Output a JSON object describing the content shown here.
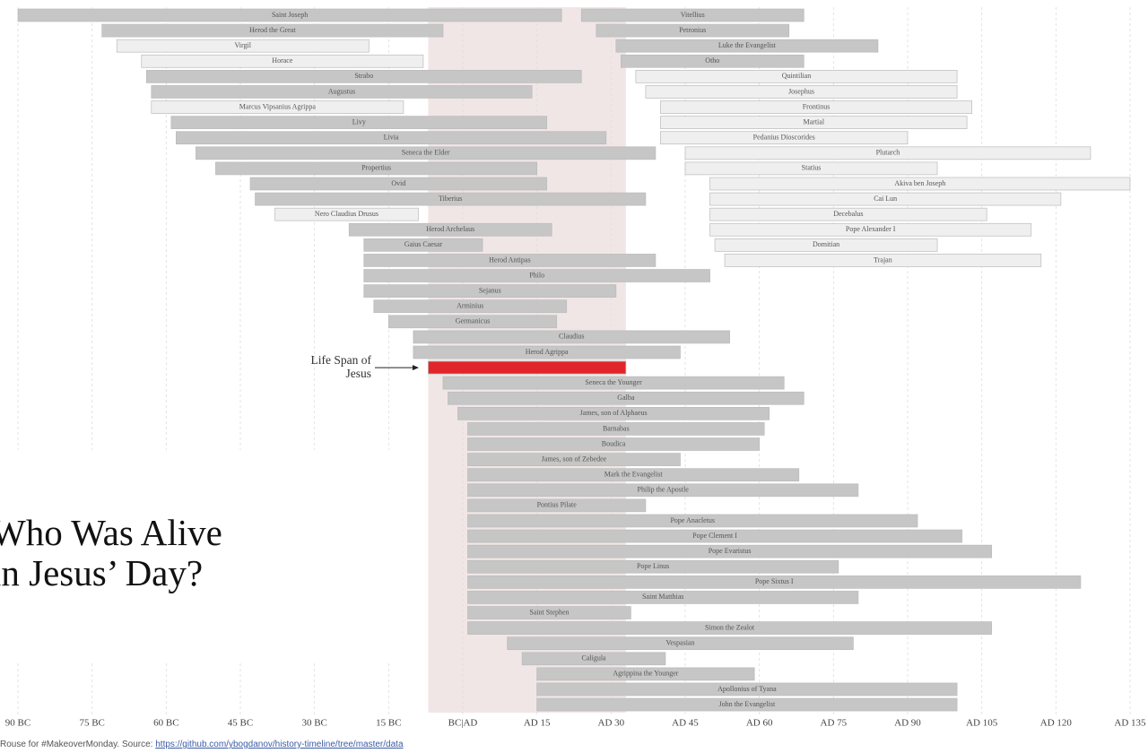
{
  "chart_data": {
    "type": "timeline",
    "title": "Who Was Alive in Jesus’ Day?",
    "annotation": "Life Span of Jesus",
    "highlight": {
      "start": -7,
      "end": 33,
      "color": "#f1e6e6"
    },
    "xlim": [
      -90,
      135
    ],
    "xticks": [
      {
        "value": -90,
        "label": "90 BC"
      },
      {
        "value": -75,
        "label": "75 BC"
      },
      {
        "value": -60,
        "label": "60 BC"
      },
      {
        "value": -45,
        "label": "45 BC"
      },
      {
        "value": -30,
        "label": "30 BC"
      },
      {
        "value": -15,
        "label": "15 BC"
      },
      {
        "value": 0,
        "label": "BC|AD"
      },
      {
        "value": 15,
        "label": "AD 15"
      },
      {
        "value": 30,
        "label": "AD 30"
      },
      {
        "value": 45,
        "label": "AD 45"
      },
      {
        "value": 60,
        "label": "AD 60"
      },
      {
        "value": 75,
        "label": "AD 75"
      },
      {
        "value": 90,
        "label": "AD 90"
      },
      {
        "value": 105,
        "label": "AD 105"
      },
      {
        "value": 120,
        "label": "AD 120"
      },
      {
        "value": 135,
        "label": "AD 135"
      }
    ],
    "grid": true,
    "rows": [
      [
        {
          "label": "Saint Joseph",
          "start": -90,
          "end": 20,
          "color": "#c6c6c6"
        },
        {
          "label": "Vitellius",
          "start": 24,
          "end": 69,
          "color": "#c6c6c6"
        }
      ],
      [
        {
          "label": "Herod the Great",
          "start": -73,
          "end": -4,
          "color": "#c6c6c6"
        },
        {
          "label": "Petronius",
          "start": 27,
          "end": 66,
          "color": "#c6c6c6"
        }
      ],
      [
        {
          "label": "Virgil",
          "start": -70,
          "end": -19,
          "color": "#efefef"
        },
        {
          "label": "Luke the Evangelist",
          "start": 31,
          "end": 84,
          "color": "#c6c6c6"
        }
      ],
      [
        {
          "label": "Horace",
          "start": -65,
          "end": -8,
          "color": "#efefef"
        },
        {
          "label": "Otho",
          "start": 32,
          "end": 69,
          "color": "#c6c6c6"
        }
      ],
      [
        {
          "label": "Strabo",
          "start": -64,
          "end": 24,
          "color": "#c6c6c6"
        },
        {
          "label": "Quintilian",
          "start": 35,
          "end": 100,
          "color": "#efefef"
        }
      ],
      [
        {
          "label": "Augustus",
          "start": -63,
          "end": 14,
          "color": "#c6c6c6"
        },
        {
          "label": "Josephus",
          "start": 37,
          "end": 100,
          "color": "#efefef"
        }
      ],
      [
        {
          "label": "Marcus Vipsanius Agrippa",
          "start": -63,
          "end": -12,
          "color": "#efefef"
        },
        {
          "label": "Frontinus",
          "start": 40,
          "end": 103,
          "color": "#efefef"
        }
      ],
      [
        {
          "label": "Livy",
          "start": -59,
          "end": 17,
          "color": "#c6c6c6"
        },
        {
          "label": "Martial",
          "start": 40,
          "end": 102,
          "color": "#efefef"
        }
      ],
      [
        {
          "label": "Livia",
          "start": -58,
          "end": 29,
          "color": "#c6c6c6"
        },
        {
          "label": "Pedanius Dioscorides",
          "start": 40,
          "end": 90,
          "color": "#efefef"
        }
      ],
      [
        {
          "label": "Seneca the Elder",
          "start": -54,
          "end": 39,
          "color": "#c6c6c6"
        },
        {
          "label": "Plutarch",
          "start": 45,
          "end": 127,
          "color": "#efefef"
        }
      ],
      [
        {
          "label": "Propertius",
          "start": -50,
          "end": 15,
          "color": "#c6c6c6"
        },
        {
          "label": "Statius",
          "start": 45,
          "end": 96,
          "color": "#efefef"
        }
      ],
      [
        {
          "label": "Ovid",
          "start": -43,
          "end": 17,
          "color": "#c6c6c6"
        },
        {
          "label": "Akiva ben Joseph",
          "start": 50,
          "end": 135,
          "color": "#efefef"
        }
      ],
      [
        {
          "label": "Tiberius",
          "start": -42,
          "end": 37,
          "color": "#c6c6c6"
        },
        {
          "label": "Cai Lun",
          "start": 50,
          "end": 121,
          "color": "#efefef"
        }
      ],
      [
        {
          "label": "Nero Claudius Drusus",
          "start": -38,
          "end": -9,
          "color": "#efefef"
        },
        {
          "label": "Decebalus",
          "start": 50,
          "end": 106,
          "color": "#efefef"
        }
      ],
      [
        {
          "label": "Herod Archelaus",
          "start": -23,
          "end": 18,
          "color": "#c6c6c6"
        },
        {
          "label": "Pope Alexander I",
          "start": 50,
          "end": 115,
          "color": "#efefef"
        }
      ],
      [
        {
          "label": "Gaius Caesar",
          "start": -20,
          "end": 4,
          "color": "#c6c6c6"
        },
        {
          "label": "Domitian",
          "start": 51,
          "end": 96,
          "color": "#efefef"
        }
      ],
      [
        {
          "label": "Herod Antipas",
          "start": -20,
          "end": 39,
          "color": "#c6c6c6"
        },
        {
          "label": "Trajan",
          "start": 53,
          "end": 117,
          "color": "#efefef"
        }
      ],
      [
        {
          "label": "Philo",
          "start": -20,
          "end": 50,
          "color": "#c6c6c6"
        }
      ],
      [
        {
          "label": "Sejanus",
          "start": -20,
          "end": 31,
          "color": "#c6c6c6"
        }
      ],
      [
        {
          "label": "Arminius",
          "start": -18,
          "end": 21,
          "color": "#c6c6c6"
        }
      ],
      [
        {
          "label": "Germanicus",
          "start": -15,
          "end": 19,
          "color": "#c6c6c6"
        }
      ],
      [
        {
          "label": "Claudius",
          "start": -10,
          "end": 54,
          "color": "#c6c6c6"
        }
      ],
      [
        {
          "label": "Herod Agrippa",
          "start": -10,
          "end": 44,
          "color": "#c6c6c6"
        }
      ],
      [
        {
          "start": -7,
          "end": 33,
          "color": "#e0262b"
        }
      ],
      [
        {
          "label": "Seneca the Younger",
          "start": -4,
          "end": 65,
          "color": "#c6c6c6"
        }
      ],
      [
        {
          "label": "Galba",
          "start": -3,
          "end": 69,
          "color": "#c6c6c6"
        }
      ],
      [
        {
          "label": "James, son of Alphaeus",
          "start": -1,
          "end": 62,
          "color": "#c6c6c6"
        }
      ],
      [
        {
          "label": "Barnabas",
          "start": 1,
          "end": 61,
          "color": "#c6c6c6"
        }
      ],
      [
        {
          "label": "Boudica",
          "start": 1,
          "end": 60,
          "color": "#c6c6c6"
        }
      ],
      [
        {
          "label": "James, son of Zebedee",
          "start": 1,
          "end": 44,
          "color": "#c6c6c6"
        }
      ],
      [
        {
          "label": "Mark the Evangelist",
          "start": 1,
          "end": 68,
          "color": "#c6c6c6"
        }
      ],
      [
        {
          "label": "Philip the Apostle",
          "start": 1,
          "end": 80,
          "color": "#c6c6c6"
        }
      ],
      [
        {
          "label": "Pontius Pilate",
          "start": 1,
          "end": 37,
          "color": "#c6c6c6"
        }
      ],
      [
        {
          "label": "Pope Anacletus",
          "start": 1,
          "end": 92,
          "color": "#c6c6c6"
        }
      ],
      [
        {
          "label": "Pope Clement I",
          "start": 1,
          "end": 101,
          "color": "#c6c6c6"
        }
      ],
      [
        {
          "label": "Pope Evaristus",
          "start": 1,
          "end": 107,
          "color": "#c6c6c6"
        }
      ],
      [
        {
          "label": "Pope Linus",
          "start": 1,
          "end": 76,
          "color": "#c6c6c6"
        }
      ],
      [
        {
          "label": "Pope Sixtus I",
          "start": 1,
          "end": 125,
          "color": "#c6c6c6"
        }
      ],
      [
        {
          "label": "Saint Matthias",
          "start": 1,
          "end": 80,
          "color": "#c6c6c6"
        }
      ],
      [
        {
          "label": "Saint Stephen",
          "start": 1,
          "end": 34,
          "color": "#c6c6c6"
        }
      ],
      [
        {
          "label": "Simon the Zealot",
          "start": 1,
          "end": 107,
          "color": "#c6c6c6"
        }
      ],
      [
        {
          "label": "Vespasian",
          "start": 9,
          "end": 79,
          "color": "#c6c6c6"
        }
      ],
      [
        {
          "label": "Caligula",
          "start": 12,
          "end": 41,
          "color": "#c6c6c6"
        }
      ],
      [
        {
          "label": "Agrippina the Younger",
          "start": 15,
          "end": 59,
          "color": "#c6c6c6"
        }
      ],
      [
        {
          "label": "Apollonius of Tyana",
          "start": 15,
          "end": 100,
          "color": "#c6c6c6"
        }
      ],
      [
        {
          "label": "John the Evangelist",
          "start": 15,
          "end": 100,
          "color": "#c6c6c6"
        }
      ]
    ]
  },
  "footer": {
    "note": "Rouse for #MakeoverMonday. Source:",
    "url": "https://github.com/ybogdanov/history-timeline/tree/master/data"
  }
}
